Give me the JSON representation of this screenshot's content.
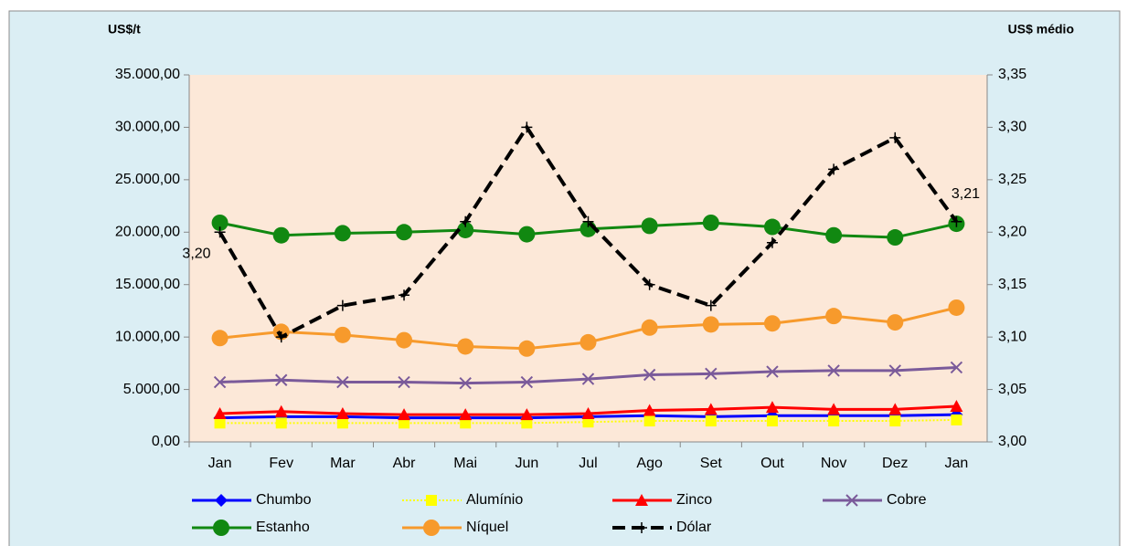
{
  "chart_data": {
    "type": "line",
    "y_label": "US$/t",
    "y2_label": "US$ médio",
    "categories": [
      "Jan",
      "Fev",
      "Mar",
      "Abr",
      "Mai",
      "Jun",
      "Jul",
      "Ago",
      "Set",
      "Out",
      "Nov",
      "Dez",
      "Jan"
    ],
    "ylim": [
      0,
      35000
    ],
    "yticks": [
      {
        "value": 0,
        "label": "0,00"
      },
      {
        "value": 5000,
        "label": "5.000,00"
      },
      {
        "value": 10000,
        "label": "10.000,00"
      },
      {
        "value": 15000,
        "label": "15.000,00"
      },
      {
        "value": 20000,
        "label": "20.000,00"
      },
      {
        "value": 25000,
        "label": "25.000,00"
      },
      {
        "value": 30000,
        "label": "30.000,00"
      },
      {
        "value": 35000,
        "label": "35.000,00"
      }
    ],
    "y2lim": [
      3.0,
      3.35
    ],
    "y2ticks": [
      {
        "value": 3.0,
        "label": "3,00"
      },
      {
        "value": 3.05,
        "label": "3,05"
      },
      {
        "value": 3.1,
        "label": "3,10"
      },
      {
        "value": 3.15,
        "label": "3,15"
      },
      {
        "value": 3.2,
        "label": "3,20"
      },
      {
        "value": 3.25,
        "label": "3,25"
      },
      {
        "value": 3.3,
        "label": "3,30"
      },
      {
        "value": 3.35,
        "label": "3,35"
      }
    ],
    "legend": "bottom",
    "series": [
      {
        "name": "Chumbo",
        "color": "#0000ff",
        "marker": "diamond",
        "values": [
          2300,
          2400,
          2400,
          2300,
          2300,
          2300,
          2400,
          2500,
          2400,
          2500,
          2500,
          2500,
          2600
        ]
      },
      {
        "name": "Alumínio",
        "color": "#ffff00",
        "marker": "square",
        "dash": "dotted",
        "values": [
          1800,
          1800,
          1800,
          1800,
          1800,
          1800,
          1900,
          2000,
          2000,
          2000,
          2000,
          2000,
          2100
        ]
      },
      {
        "name": "Zinco",
        "color": "#ff0000",
        "marker": "triangle",
        "values": [
          2700,
          2900,
          2700,
          2600,
          2600,
          2600,
          2700,
          3000,
          3100,
          3300,
          3100,
          3100,
          3400
        ]
      },
      {
        "name": "Cobre",
        "color": "#7a5a9a",
        "marker": "x",
        "values": [
          5700,
          5900,
          5700,
          5700,
          5600,
          5700,
          6000,
          6400,
          6500,
          6700,
          6800,
          6800,
          7100
        ]
      },
      {
        "name": "Estanho",
        "color": "#118811",
        "marker": "circle",
        "values": [
          20900,
          19700,
          19900,
          20000,
          20200,
          19800,
          20300,
          20600,
          20900,
          20500,
          19700,
          19500,
          20800
        ]
      },
      {
        "name": "Níquel",
        "color": "#f79a2c",
        "marker": "circle",
        "values": [
          9900,
          10500,
          10200,
          9700,
          9100,
          8900,
          9500,
          10900,
          11200,
          11300,
          12000,
          11400,
          12800
        ]
      },
      {
        "name": "Dólar",
        "color": "#000000",
        "marker": "plus",
        "dash": "dashed",
        "axis": "y2",
        "values": [
          3.2,
          3.1,
          3.13,
          3.14,
          3.21,
          3.3,
          3.21,
          3.15,
          3.13,
          3.19,
          3.26,
          3.29,
          3.21
        ],
        "value_labels": [
          "3,20",
          null,
          null,
          null,
          null,
          null,
          null,
          null,
          null,
          null,
          null,
          null,
          "3,21"
        ]
      }
    ]
  }
}
